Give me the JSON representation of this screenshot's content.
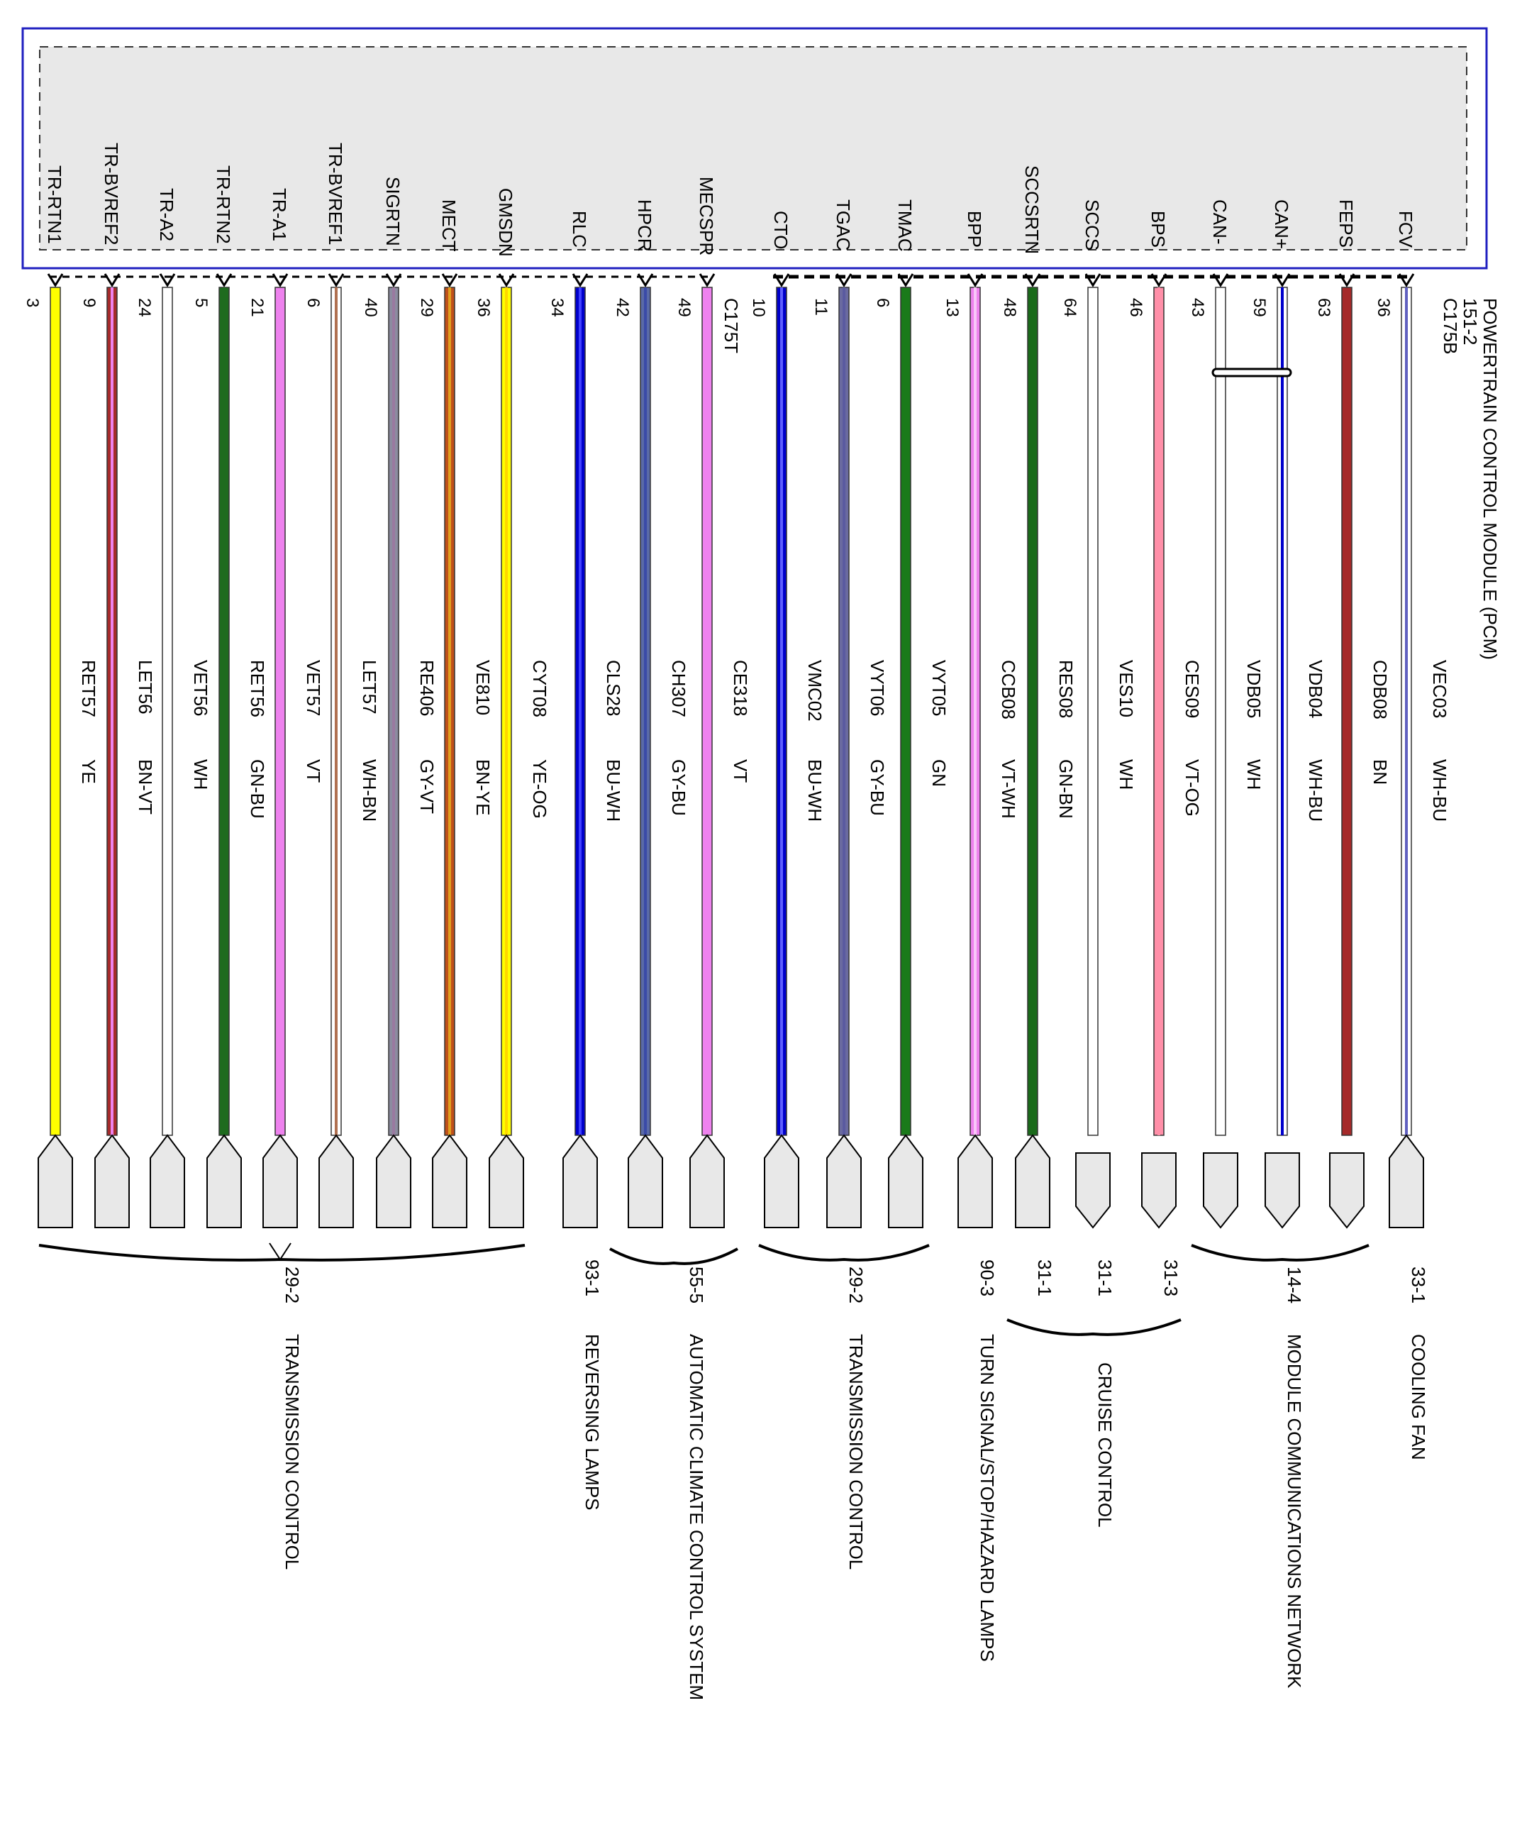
{
  "module": {
    "lines": [
      "POWERTRAIN CONTROL MODULE (PCM)",
      "151-2",
      "C175B"
    ],
    "connector_t": "C175T"
  },
  "wires": [
    {
      "signal": "TR-RTN1",
      "pin": "3",
      "circuit": "RET57",
      "color_code": "YE",
      "base": "#ffff00",
      "stripe": null,
      "dashed": true,
      "shape": "up"
    },
    {
      "signal": "TR-BVREF2",
      "pin": "9",
      "circuit": "LET56",
      "color_code": "BN-VT",
      "base": "#a52a2a",
      "stripe": "#ee82ee",
      "dashed": true,
      "shape": "up"
    },
    {
      "signal": "TR-A2",
      "pin": "24",
      "circuit": "VET56",
      "color_code": "WH",
      "base": "#ffffff",
      "stripe": null,
      "dashed": true,
      "shape": "up"
    },
    {
      "signal": "TR-RTN2",
      "pin": "5",
      "circuit": "RET56",
      "color_code": "GN-BU",
      "base": "#1e6b1e",
      "stripe": "#1e6b1e",
      "dashed": true,
      "shape": "up"
    },
    {
      "signal": "TR-A1",
      "pin": "21",
      "circuit": "VET57",
      "color_code": "VT",
      "base": "#ee82ee",
      "stripe": null,
      "dashed": true,
      "shape": "up"
    },
    {
      "signal": "TR-BVREF1",
      "pin": "6",
      "circuit": "LET57",
      "color_code": "WH-BN",
      "base": "#ffffff",
      "stripe": "#b07050",
      "dashed": true,
      "shape": "up"
    },
    {
      "signal": "SIGRTN",
      "pin": "40",
      "circuit": "RE406",
      "color_code": "GY-VT",
      "base": "#8c8ca0",
      "stripe": "#9a7aa0",
      "dashed": true,
      "shape": "up"
    },
    {
      "signal": "MECT",
      "pin": "29",
      "circuit": "VE810",
      "color_code": "BN-YE",
      "base": "#c0501a",
      "stripe": "#e0a020",
      "dashed": true,
      "shape": "up"
    },
    {
      "signal": "GMSDN",
      "pin": "36",
      "circuit": "CYT08",
      "color_code": "YE-OG",
      "base": "#ffff00",
      "stripe": "#ffd700",
      "dashed": true,
      "shape": "up"
    },
    {
      "signal": "RLC",
      "pin": "34",
      "circuit": "CLS28",
      "color_code": "BU-WH",
      "base": "#0000cc",
      "stripe": "#4040ff",
      "dashed": true,
      "shape": "up"
    },
    {
      "signal": "HPCR",
      "pin": "42",
      "circuit": "CH307",
      "color_code": "GY-BU",
      "base": "#5a6aa8",
      "stripe": "#3a4aa8",
      "dashed": true,
      "shape": "up"
    },
    {
      "signal": "MECSPR",
      "pin": "49",
      "circuit": "CE318",
      "color_code": "VT",
      "base": "#ee82ee",
      "stripe": null,
      "dashed": true,
      "shape": "up"
    },
    {
      "signal": "CTO",
      "pin": "10",
      "circuit": "VMC02",
      "color_code": "BU-WH",
      "base": "#0000cc",
      "stripe": "#6060ff",
      "dashed": false,
      "shape": "up"
    },
    {
      "signal": "TGAC",
      "pin": "11",
      "circuit": "VYT06",
      "color_code": "GY-BU",
      "base": "#6a6aa0",
      "stripe": "#5a5aa0",
      "dashed": false,
      "shape": "up"
    },
    {
      "signal": "TMAC",
      "pin": "6",
      "circuit": "VYT05",
      "color_code": "GN",
      "base": "#1a7a1a",
      "stripe": null,
      "dashed": false,
      "shape": "up"
    },
    {
      "signal": "BPP",
      "pin": "13",
      "circuit": "CCB08",
      "color_code": "VT-WH",
      "base": "#ee82ee",
      "stripe": "#f8c8f8",
      "dashed": false,
      "shape": "up"
    },
    {
      "signal": "SCCSRTN",
      "pin": "48",
      "circuit": "RES08",
      "color_code": "GN-BN",
      "base": "#1a6a1a",
      "stripe": "#1a6a1a",
      "dashed": false,
      "shape": "up"
    },
    {
      "signal": "SCCS",
      "pin": "64",
      "circuit": "VES10",
      "color_code": "WH",
      "base": "#ffffff",
      "stripe": null,
      "dashed": false,
      "shape": "down"
    },
    {
      "signal": "BPS",
      "pin": "46",
      "circuit": "CES09",
      "color_code": "VT-OG",
      "base": "#ff8fa8",
      "stripe": "#ff8fa8",
      "dashed": false,
      "shape": "down"
    },
    {
      "signal": "CAN-",
      "pin": "43",
      "circuit": "VDB05",
      "color_code": "WH",
      "base": "#ffffff",
      "stripe": null,
      "dashed": false,
      "shape": "down"
    },
    {
      "signal": "CAN+",
      "pin": "59",
      "circuit": "VDB04",
      "color_code": "WH-BU",
      "base": "#ffffff",
      "stripe": "#0000cc",
      "dashed": false,
      "shape": "down"
    },
    {
      "signal": "FEPS",
      "pin": "63",
      "circuit": "CDB08",
      "color_code": "BN",
      "base": "#a52a2a",
      "stripe": null,
      "dashed": false,
      "shape": "down"
    },
    {
      "signal": "FCV",
      "pin": "36",
      "circuit": "VEC03",
      "color_code": "WH-BU",
      "base": "#ffffff",
      "stripe": "#6060c0",
      "dashed": false,
      "shape": "up"
    }
  ],
  "refs": [
    {
      "num": "29-2",
      "title": "TRANSMISSION CONTROL"
    },
    {
      "num": "93-1",
      "title": "REVERSING LAMPS"
    },
    {
      "num": "55-5",
      "title": "AUTOMATIC CLIMATE CONTROL SYSTEM"
    },
    {
      "num": "29-2",
      "title": "TRANSMISSION CONTROL"
    },
    {
      "num": "90-3",
      "title": "TURN SIGNAL/STOP/HAZARD LAMPS"
    },
    {
      "num": "31-1",
      "title": ""
    },
    {
      "num": "31-1",
      "title": "CRUISE CONTROL"
    },
    {
      "num": "31-3",
      "title": ""
    },
    {
      "num": "14-4",
      "title": "MODULE COMMUNICATIONS NETWORK"
    },
    {
      "num": "33-1",
      "title": "COOLING FAN"
    }
  ]
}
